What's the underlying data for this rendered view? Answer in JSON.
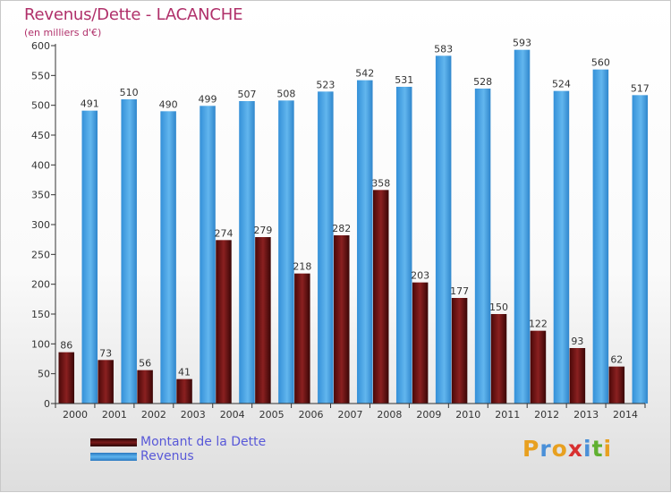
{
  "chart_data": {
    "type": "bar",
    "title": "Revenus/Dette - LACANCHE",
    "subtitle": "(en milliers d'€)",
    "categories": [
      "2000",
      "2001",
      "2002",
      "2003",
      "2004",
      "2005",
      "2006",
      "2007",
      "2008",
      "2009",
      "2010",
      "2011",
      "2012",
      "2013",
      "2014"
    ],
    "series": [
      {
        "name": "Montant de la Dette",
        "color": "#7a1a1a",
        "values": [
          86,
          73,
          56,
          41,
          274,
          279,
          218,
          282,
          358,
          203,
          177,
          150,
          122,
          93,
          62
        ]
      },
      {
        "name": "Revenus",
        "color": "#3f9be0",
        "values": [
          491,
          510,
          490,
          499,
          507,
          508,
          523,
          542,
          531,
          583,
          528,
          593,
          524,
          560,
          517
        ]
      }
    ],
    "ylim": [
      0,
      600
    ],
    "yticks": [
      0,
      50,
      100,
      150,
      200,
      250,
      300,
      350,
      400,
      450,
      500,
      550,
      600
    ],
    "grid": false,
    "legend_position": "bottom-left"
  },
  "brand": {
    "letters": [
      "P",
      "r",
      "o",
      "x",
      "i",
      "t",
      "i"
    ],
    "colors": [
      "#e8a020",
      "#4a90d8",
      "#e8a020",
      "#d83030",
      "#4a90d8",
      "#60b030",
      "#e8a020"
    ]
  }
}
